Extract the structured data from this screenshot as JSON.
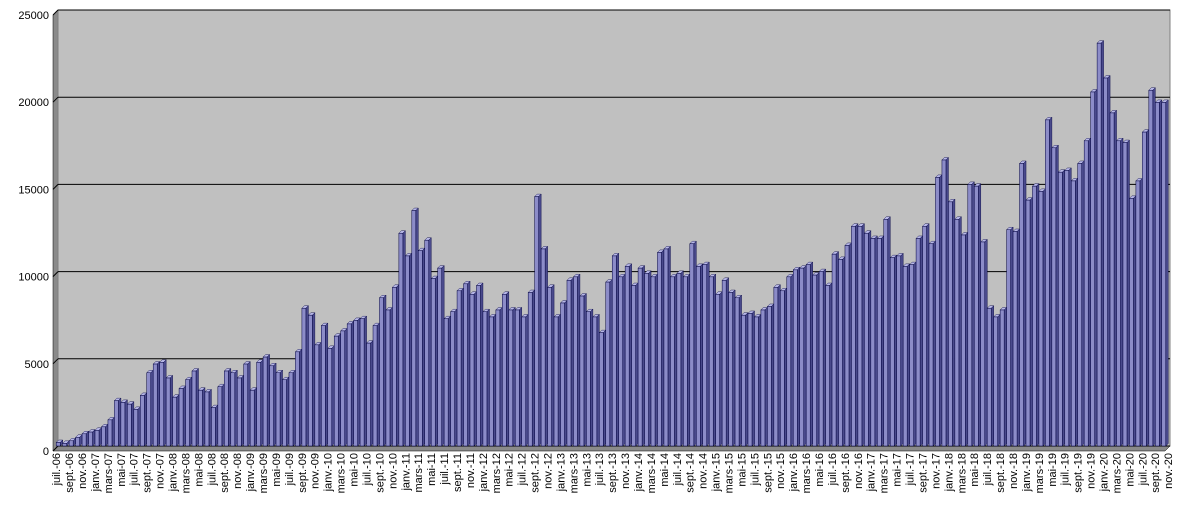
{
  "chart_data": {
    "type": "bar",
    "ylim": [
      0,
      25000
    ],
    "yticks": [
      0,
      5000,
      10000,
      15000,
      20000,
      25000
    ],
    "grid": true,
    "legend": "none",
    "colors": {
      "plot_bg": "#c0c0c0",
      "bar": "#8c8cc8",
      "bar_edge": "#000040",
      "grid": "#000000"
    },
    "xtick_labels": [
      "juil.-06",
      "sept.-06",
      "nov.-06",
      "janv.-07",
      "mars-07",
      "mai-07",
      "juil.-07",
      "sept.-07",
      "nov.-07",
      "janv.-08",
      "mars-08",
      "mai-08",
      "juil.-08",
      "sept.-08",
      "nov.-08",
      "janv.-09",
      "mars-09",
      "mai-09",
      "juil.-09",
      "sept.-09",
      "nov.-09",
      "janv.-10",
      "mars-10",
      "mai-10",
      "juil.-10",
      "sept.-10",
      "nov.-10",
      "janv.-11",
      "mars-11",
      "mai-11",
      "juil.-11",
      "sept.-11",
      "nov.-11",
      "janv.-12",
      "mars-12",
      "mai-12",
      "juil.-12",
      "sept.-12",
      "nov.-12",
      "janv.-13",
      "mars-13",
      "mai-13",
      "juil.-13",
      "sept.-13",
      "nov.-13",
      "janv.-14",
      "mars-14",
      "mai-14",
      "juil.-14",
      "sept.-14",
      "nov.-14",
      "janv.-15",
      "mars-15",
      "mai-15",
      "juil.-15",
      "sept.-15",
      "nov.-15",
      "janv.-16",
      "mars-16",
      "mai-16",
      "juil.-16",
      "sept.-16",
      "nov.-16",
      "janv.-17",
      "mars-17",
      "mai-17",
      "juil.-17",
      "sept.-17",
      "nov.-17",
      "janv.-18",
      "mars-18",
      "mai-18",
      "juil.-18",
      "sept.-18",
      "nov.-18",
      "janv.-19",
      "mars-19",
      "mai-19",
      "juil.-19",
      "sept.-19",
      "nov.-19",
      "janv.-20",
      "mars-20",
      "mai-20",
      "juil.-20",
      "sept.-20",
      "nov.-20"
    ],
    "values": [
      200,
      150,
      300,
      500,
      700,
      800,
      900,
      1100,
      1500,
      2600,
      2500,
      2400,
      2100,
      2900,
      4200,
      4700,
      4800,
      3900,
      2800,
      3300,
      3800,
      4300,
      3200,
      3100,
      2200,
      3400,
      4300,
      4200,
      3900,
      4700,
      3200,
      4800,
      5100,
      4600,
      4200,
      3800,
      4200,
      5400,
      7900,
      7500,
      5800,
      6900,
      5600,
      6300,
      6600,
      7000,
      7200,
      7300,
      5900,
      6900,
      8500,
      7800,
      9100,
      12200,
      10900,
      13500,
      11200,
      11800,
      9600,
      10200,
      7300,
      7700,
      8900,
      9300,
      8700,
      9200,
      7700,
      7400,
      7800,
      8700,
      7800,
      7800,
      7400,
      8800,
      14300,
      11300,
      9100,
      7400,
      8200,
      9500,
      9700,
      8600,
      7700,
      7400,
      6500,
      9400,
      10900,
      9700,
      10300,
      9200,
      10200,
      9900,
      9700,
      11100,
      11300,
      9700,
      9900,
      9700,
      11600,
      10300,
      10400,
      9700,
      8700,
      9500,
      8800,
      8500,
      7500,
      7600,
      7400,
      7800,
      8000,
      9100,
      8900,
      9700,
      10100,
      10200,
      10400,
      9800,
      10000,
      9200,
      11000,
      10700,
      11500,
      12600,
      12600,
      12200,
      11900,
      11900,
      13000,
      10800,
      10900,
      10300,
      10400,
      11900,
      12600,
      11600,
      15400,
      16400,
      14000,
      13000,
      12100,
      15000,
      14900,
      11700,
      7900,
      7400,
      7800,
      12400,
      12300,
      16200,
      14100,
      14900,
      14600,
      18700,
      17100,
      15700,
      15800,
      15200,
      16200,
      17500,
      20300,
      23100,
      21100,
      19100,
      17500,
      17400,
      14200,
      15200,
      18000,
      20400,
      19700,
      19700
    ]
  }
}
